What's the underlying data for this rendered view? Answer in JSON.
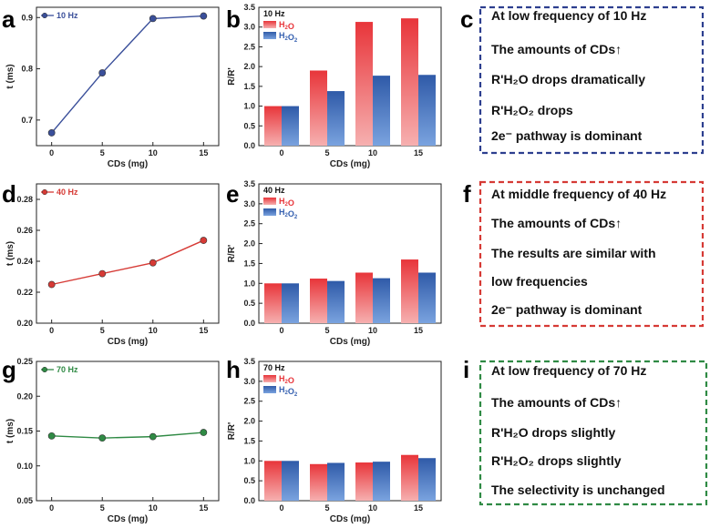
{
  "chart_data": [
    {
      "id": "a",
      "type": "line",
      "panel_label": "a",
      "legend": "10 Hz",
      "color": "#3a4f9a",
      "x": [
        0,
        5,
        10,
        15
      ],
      "y": [
        0.675,
        0.792,
        0.898,
        0.903
      ],
      "xlabel": "CDs (mg)",
      "ylabel": "t (ms)",
      "ylim": [
        0.65,
        0.92
      ],
      "yticks": [
        "0.7",
        "0.8",
        "0.9"
      ],
      "ytick_values": [
        0.7,
        0.8,
        0.9
      ],
      "xticks": [
        "0",
        "5",
        "10",
        "15"
      ]
    },
    {
      "id": "b",
      "type": "bar",
      "panel_label": "b",
      "title": "10 Hz",
      "categories": [
        "0",
        "5",
        "10",
        "15"
      ],
      "series": [
        {
          "name": "H2O",
          "name_main": "H",
          "name_sub": "2",
          "name_tail": "O",
          "color": "#e8353a",
          "values": [
            1.0,
            1.9,
            3.13,
            3.22
          ]
        },
        {
          "name": "H2O2",
          "name_main": "H",
          "name_sub": "2",
          "name_tail": "O",
          "name_sub2": "2",
          "color": "#3560b0",
          "values": [
            1.0,
            1.38,
            1.77,
            1.79
          ]
        }
      ],
      "xlabel": "CDs (mg)",
      "ylabel": "R/R'",
      "ylim": [
        0,
        3.5
      ],
      "yticks": [
        "0.0",
        "0.5",
        "1.0",
        "1.5",
        "2.0",
        "2.5",
        "3.0",
        "3.5"
      ],
      "ytick_values": [
        0,
        0.5,
        1.0,
        1.5,
        2.0,
        2.5,
        3.0,
        3.5
      ]
    },
    {
      "id": "d",
      "type": "line",
      "panel_label": "d",
      "legend": "40 Hz",
      "color": "#d63a35",
      "x": [
        0,
        5,
        10,
        15
      ],
      "y": [
        0.225,
        0.232,
        0.239,
        0.2535
      ],
      "xlabel": "CDs (mg)",
      "ylabel": "t (ms)",
      "ylim": [
        0.2,
        0.29
      ],
      "yticks": [
        "0.20",
        "0.22",
        "0.24",
        "0.26",
        "0.28"
      ],
      "ytick_values": [
        0.2,
        0.22,
        0.24,
        0.26,
        0.28
      ],
      "xticks": [
        "0",
        "5",
        "10",
        "15"
      ]
    },
    {
      "id": "e",
      "type": "bar",
      "panel_label": "e",
      "title": "40 Hz",
      "categories": [
        "0",
        "5",
        "10",
        "15"
      ],
      "series": [
        {
          "name": "H2O",
          "color": "#e8353a",
          "values": [
            1.0,
            1.12,
            1.27,
            1.6
          ]
        },
        {
          "name": "H2O2",
          "color": "#3560b0",
          "values": [
            1.0,
            1.06,
            1.13,
            1.27
          ]
        }
      ],
      "xlabel": "CDs (mg)",
      "ylabel": "R/R'",
      "ylim": [
        0,
        3.5
      ],
      "yticks": [
        "0.0",
        "0.5",
        "1.0",
        "1.5",
        "2.0",
        "2.5",
        "3.0",
        "3.5"
      ],
      "ytick_values": [
        0,
        0.5,
        1.0,
        1.5,
        2.0,
        2.5,
        3.0,
        3.5
      ]
    },
    {
      "id": "g",
      "type": "line",
      "panel_label": "g",
      "legend": "70 Hz",
      "color": "#2f8a44",
      "x": [
        0,
        5,
        10,
        15
      ],
      "y": [
        0.143,
        0.14,
        0.142,
        0.148
      ],
      "xlabel": "CDs (mg)",
      "ylabel": "t (ms)",
      "ylim": [
        0.05,
        0.25
      ],
      "yticks": [
        "0.05",
        "0.10",
        "0.15",
        "0.20",
        "0.25"
      ],
      "ytick_values": [
        0.05,
        0.1,
        0.15,
        0.2,
        0.25
      ],
      "xticks": [
        "0",
        "5",
        "10",
        "15"
      ]
    },
    {
      "id": "h",
      "type": "bar",
      "panel_label": "h",
      "title": "70 Hz",
      "categories": [
        "0",
        "5",
        "10",
        "15"
      ],
      "series": [
        {
          "name": "H2O",
          "color": "#e8353a",
          "values": [
            1.0,
            0.92,
            0.96,
            1.15
          ]
        },
        {
          "name": "H2O2",
          "color": "#3560b0",
          "values": [
            1.0,
            0.95,
            0.98,
            1.07
          ]
        }
      ],
      "xlabel": "CDs (mg)",
      "ylabel": "R/R'",
      "ylim": [
        0,
        3.5
      ],
      "yticks": [
        "0.0",
        "0.5",
        "1.0",
        "1.5",
        "2.0",
        "2.5",
        "3.0",
        "3.5"
      ],
      "ytick_values": [
        0,
        0.5,
        1.0,
        1.5,
        2.0,
        2.5,
        3.0,
        3.5
      ]
    }
  ],
  "text_boxes": [
    {
      "id": "c",
      "panel_label": "c",
      "border_color": "#2d3f8f",
      "lines": [
        "At low frequency of 10 Hz",
        "The amounts of CDs↑",
        "R'H₂O drops dramatically",
        "R'H₂O₂ drops",
        "2e⁻ pathway is dominant"
      ]
    },
    {
      "id": "f",
      "panel_label": "f",
      "border_color": "#d63a35",
      "lines": [
        "At middle frequency of 40 Hz",
        "The amounts of CDs↑",
        "The results are similar with",
        "low frequencies",
        "2e⁻ pathway is dominant"
      ]
    },
    {
      "id": "i",
      "panel_label": "i",
      "border_color": "#2f8a44",
      "lines": [
        "At low frequency of 70 Hz",
        "The amounts of CDs↑",
        "R'H₂O drops slightly",
        "R'H₂O₂ drops slightly",
        "The selectivity is unchanged"
      ]
    }
  ]
}
